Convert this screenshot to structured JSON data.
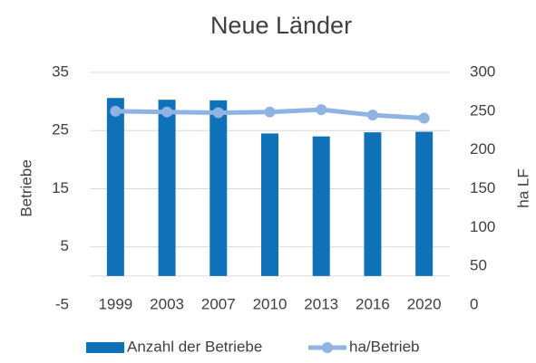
{
  "chart_data": {
    "type": "bar_line",
    "title": "Neue Länder",
    "categories": [
      "1999",
      "2003",
      "2007",
      "2010",
      "2013",
      "2016",
      "2020"
    ],
    "series": [
      {
        "name": "Anzahl der Betriebe",
        "type": "bar",
        "color": "#0f72b8",
        "values": [
          30.6,
          30.3,
          30.2,
          24.5,
          24.0,
          24.7,
          24.8
        ]
      },
      {
        "name": "ha/Betrieb",
        "type": "line",
        "axis": "y2",
        "color": "#8fb4e3",
        "values": [
          250,
          249,
          248,
          249,
          252,
          245,
          241
        ]
      }
    ],
    "ylabel": "Betriebe",
    "y2label": "ha LF",
    "ylim": [
      -5,
      35
    ],
    "yticks": [
      -5,
      5,
      15,
      25,
      35
    ],
    "y2lim": [
      0,
      300
    ],
    "y2ticks": [
      0,
      50,
      100,
      150,
      200,
      250,
      300
    ],
    "grid": true,
    "legend": "bottom"
  }
}
